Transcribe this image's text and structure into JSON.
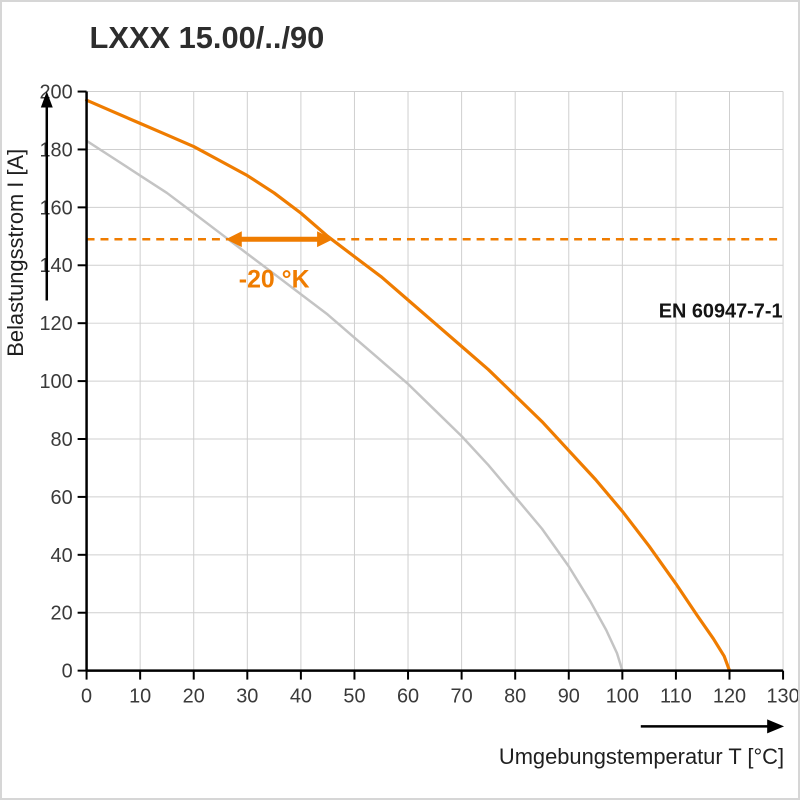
{
  "page": {
    "title": "LXXX 15.00/../90"
  },
  "chart_data": {
    "type": "line",
    "title": "LXXX 15.00/../90",
    "xlabel": "Umgebungstemperatur T [°C]",
    "ylabel": "Belastungsstrom I [A]",
    "xlim": [
      0,
      130
    ],
    "ylim": [
      0,
      200
    ],
    "x_ticks": [
      0,
      10,
      20,
      30,
      40,
      50,
      60,
      70,
      80,
      90,
      100,
      110,
      120,
      130
    ],
    "y_ticks": [
      0,
      20,
      40,
      60,
      80,
      100,
      120,
      140,
      160,
      180,
      200
    ],
    "grid": true,
    "colors": {
      "grid": "#cfcfcf",
      "axis": "#000000",
      "accent_orange": "#ef7c00",
      "curve_gray": "#c4c4c4"
    },
    "series": [
      {
        "name": "derating-curve-gray",
        "color": "#c4c4c4",
        "width": 2.5,
        "points": [
          [
            0,
            183
          ],
          [
            5,
            177
          ],
          [
            10,
            171
          ],
          [
            15,
            165
          ],
          [
            20,
            158
          ],
          [
            25,
            151
          ],
          [
            30,
            144
          ],
          [
            35,
            137
          ],
          [
            40,
            130
          ],
          [
            45,
            123
          ],
          [
            50,
            115
          ],
          [
            55,
            107
          ],
          [
            60,
            99
          ],
          [
            65,
            90
          ],
          [
            70,
            81
          ],
          [
            75,
            71
          ],
          [
            80,
            60
          ],
          [
            85,
            49
          ],
          [
            90,
            36
          ],
          [
            94,
            24
          ],
          [
            97,
            14
          ],
          [
            99,
            6
          ],
          [
            100,
            0
          ]
        ]
      },
      {
        "name": "derating-curve-orange",
        "color": "#ef7c00",
        "width": 3.2,
        "points": [
          [
            0,
            197
          ],
          [
            5,
            193
          ],
          [
            10,
            189
          ],
          [
            15,
            185
          ],
          [
            20,
            181
          ],
          [
            25,
            176
          ],
          [
            30,
            171
          ],
          [
            35,
            165
          ],
          [
            40,
            158
          ],
          [
            45,
            150
          ],
          [
            50,
            143
          ],
          [
            55,
            136
          ],
          [
            60,
            128
          ],
          [
            65,
            120
          ],
          [
            70,
            112
          ],
          [
            75,
            104
          ],
          [
            80,
            95
          ],
          [
            85,
            86
          ],
          [
            90,
            76
          ],
          [
            95,
            66
          ],
          [
            100,
            55
          ],
          [
            105,
            43
          ],
          [
            110,
            30
          ],
          [
            114,
            19
          ],
          [
            117,
            11
          ],
          [
            119,
            5
          ],
          [
            120,
            0
          ]
        ]
      }
    ],
    "reference_line": {
      "y": 149,
      "color": "#ef7c00",
      "style": "dashed"
    },
    "delta_arrow": {
      "y": 149,
      "x1": 26,
      "x2": 46,
      "label": "-20 °K",
      "color": "#ef7c00"
    },
    "annotations": [
      {
        "text": "EN 60947-7-1",
        "x": 107,
        "y": 126
      }
    ]
  }
}
